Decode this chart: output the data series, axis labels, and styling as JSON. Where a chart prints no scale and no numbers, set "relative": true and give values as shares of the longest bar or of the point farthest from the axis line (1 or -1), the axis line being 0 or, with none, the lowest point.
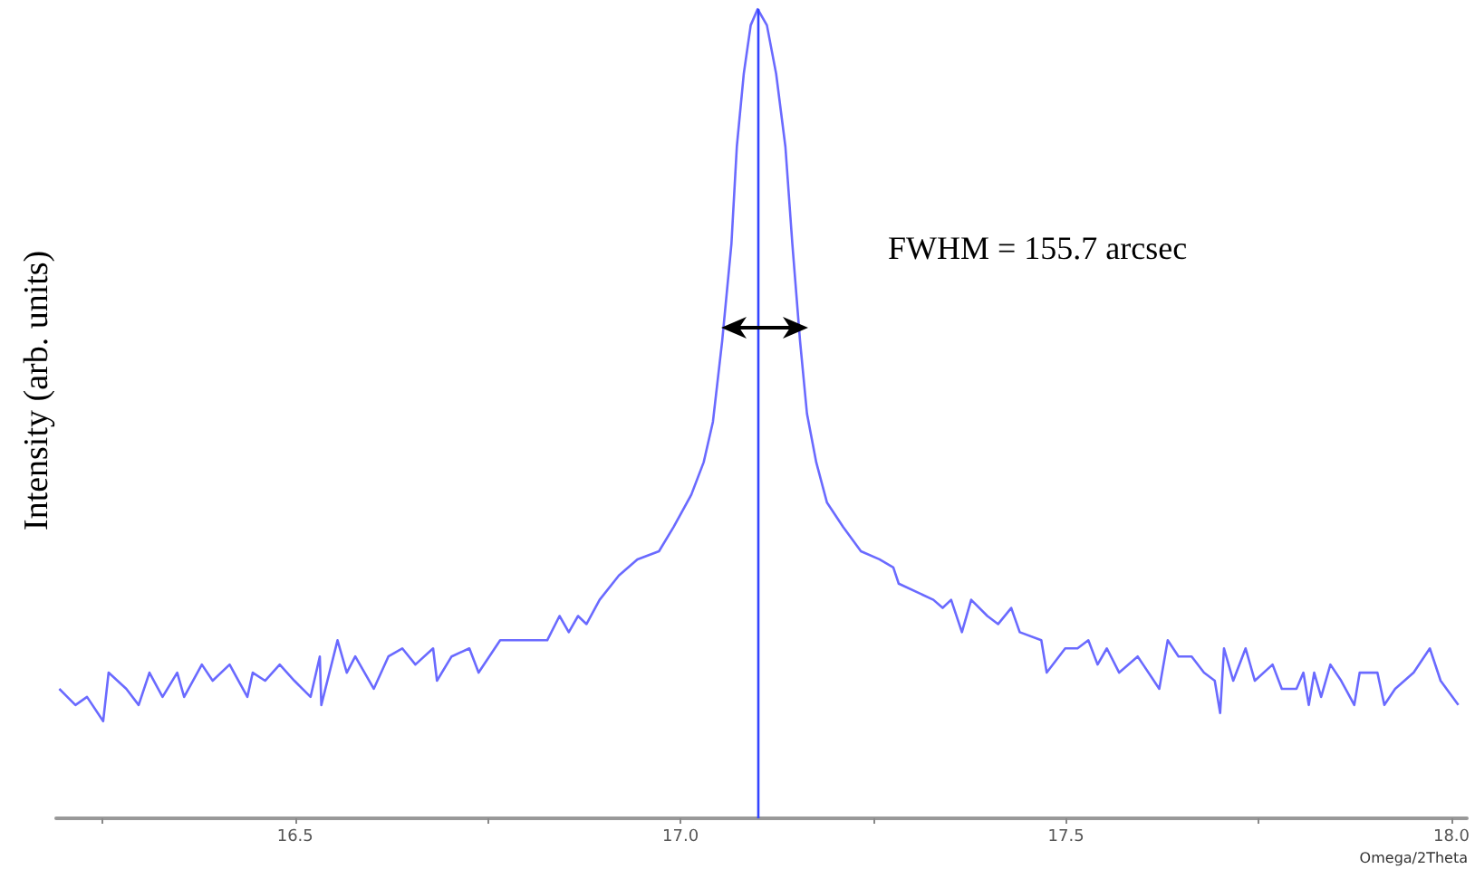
{
  "chart_data": {
    "type": "line",
    "relative": true,
    "xlabel": "Omega/2Theta",
    "ylabel": "Intensity (arb. units)",
    "xlim": [
      16.19,
      18.02
    ],
    "xticks": [
      {
        "value": 16.25,
        "label": null
      },
      16.5,
      {
        "value": 16.75,
        "label": null
      },
      {
        "value": 17,
        "label": "17.0"
      },
      {
        "value": 17.25,
        "label": null
      },
      17.5,
      {
        "value": 17.75,
        "label": null
      },
      {
        "value": 18,
        "label": "18.0"
      }
    ],
    "grid": false,
    "marker": "none",
    "line_style": "solid",
    "ref_lines": [
      {
        "axis": "x",
        "value": 17.1,
        "color": "#3344ff"
      }
    ],
    "annotations": [
      "FWHM = 155.7 arcsec"
    ],
    "series": [
      {
        "color": "#6a6aff",
        "x": [
          16.194,
          16.215,
          16.23,
          16.251,
          16.258,
          16.281,
          16.297,
          16.311,
          16.328,
          16.347,
          16.356,
          16.379,
          16.393,
          16.415,
          16.438,
          16.445,
          16.461,
          16.48,
          16.499,
          16.52,
          16.532,
          16.534,
          16.555,
          16.567,
          16.578,
          16.602,
          16.621,
          16.639,
          16.656,
          16.679,
          16.684,
          16.703,
          16.726,
          16.738,
          16.766,
          16.789,
          16.803,
          16.827,
          16.843,
          16.855,
          16.867,
          16.878,
          16.895,
          16.92,
          16.944,
          16.972,
          16.991,
          17.014,
          17.03,
          17.042,
          17.054,
          17.066,
          17.073,
          17.082,
          17.091,
          17.1,
          17.112,
          17.124,
          17.136,
          17.145,
          17.155,
          17.164,
          17.176,
          17.19,
          17.211,
          17.234,
          17.258,
          17.276,
          17.283,
          17.328,
          17.34,
          17.351,
          17.365,
          17.377,
          17.398,
          17.412,
          17.429,
          17.44,
          17.468,
          17.475,
          17.499,
          17.515,
          17.529,
          17.541,
          17.553,
          17.569,
          17.593,
          17.6,
          17.621,
          17.632,
          17.646,
          17.663,
          17.679,
          17.693,
          17.7,
          17.705,
          17.717,
          17.733,
          17.745,
          17.768,
          17.78,
          17.799,
          17.808,
          17.815,
          17.822,
          17.831,
          17.843,
          17.857,
          17.874,
          17.881,
          17.904,
          17.913,
          17.927,
          17.951,
          17.972,
          17.986,
          18.009
        ],
        "values": [
          0.16,
          0.14,
          0.15,
          0.12,
          0.18,
          0.16,
          0.14,
          0.18,
          0.15,
          0.18,
          0.15,
          0.19,
          0.17,
          0.19,
          0.15,
          0.18,
          0.17,
          0.19,
          0.17,
          0.15,
          0.2,
          0.14,
          0.22,
          0.18,
          0.2,
          0.16,
          0.2,
          0.21,
          0.19,
          0.21,
          0.17,
          0.2,
          0.21,
          0.18,
          0.22,
          0.22,
          0.22,
          0.22,
          0.25,
          0.23,
          0.25,
          0.24,
          0.27,
          0.3,
          0.32,
          0.33,
          0.36,
          0.4,
          0.44,
          0.49,
          0.59,
          0.71,
          0.83,
          0.92,
          0.98,
          1.0,
          0.98,
          0.92,
          0.83,
          0.71,
          0.59,
          0.5,
          0.44,
          0.39,
          0.36,
          0.33,
          0.32,
          0.31,
          0.29,
          0.27,
          0.26,
          0.27,
          0.23,
          0.27,
          0.25,
          0.24,
          0.26,
          0.23,
          0.22,
          0.18,
          0.21,
          0.21,
          0.22,
          0.19,
          0.21,
          0.18,
          0.2,
          0.19,
          0.16,
          0.22,
          0.2,
          0.2,
          0.18,
          0.17,
          0.13,
          0.21,
          0.17,
          0.21,
          0.17,
          0.19,
          0.16,
          0.16,
          0.18,
          0.14,
          0.18,
          0.15,
          0.19,
          0.17,
          0.14,
          0.18,
          0.18,
          0.14,
          0.16,
          0.18,
          0.21,
          0.17,
          0.14
        ]
      }
    ]
  }
}
